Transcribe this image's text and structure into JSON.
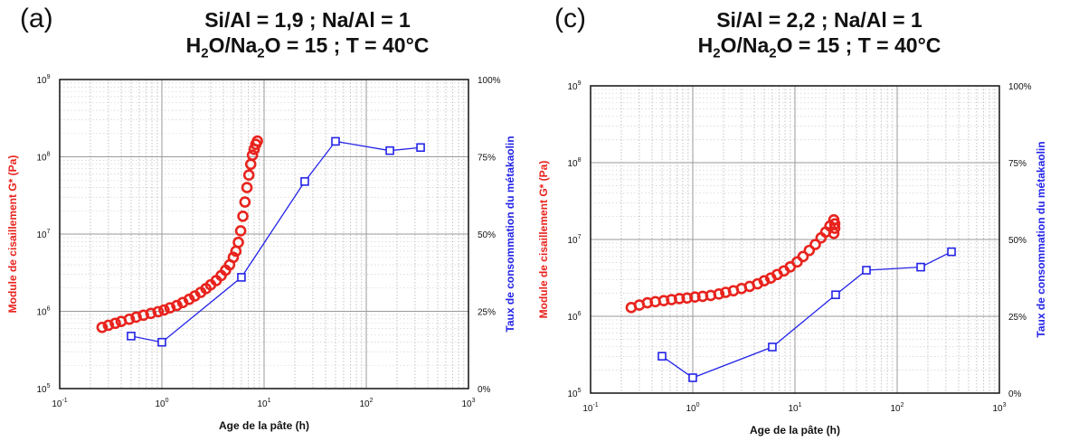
{
  "chart_data": [
    {
      "type": "scatter",
      "panel_label": "(a)",
      "title_line1": "Si/Al = 1,9 ; Na/Al = 1",
      "title_line2_prefix": "H",
      "title_line2_sub": "2",
      "title_line2_mid": "O/Na",
      "title_line2_sub2": "2",
      "title_line2_suffix": "O = 15 ; T = 40°C",
      "xlabel": "Age de la pâte (h)",
      "ylabel_left": "Module de cisaillement G* (Pa)",
      "ylabel_right": "Taux de consommation du métakaolin",
      "x_scale": "log",
      "xlim": [
        0.1,
        1000
      ],
      "x_ticks": [
        {
          "base": "10",
          "exp": "-1"
        },
        {
          "base": "10",
          "exp": "0"
        },
        {
          "base": "10",
          "exp": "1"
        },
        {
          "base": "10",
          "exp": "2"
        },
        {
          "base": "10",
          "exp": "3"
        }
      ],
      "y_left_scale": "log",
      "y_left_lim": [
        100000,
        1000000000
      ],
      "y_left_ticks": [
        {
          "base": "10",
          "exp": "5"
        },
        {
          "base": "10",
          "exp": "6"
        },
        {
          "base": "10",
          "exp": "7"
        },
        {
          "base": "10",
          "exp": "8"
        },
        {
          "base": "10",
          "exp": "9"
        }
      ],
      "y_right_lim": [
        0,
        100
      ],
      "y_right_ticks": [
        "0%",
        "25%",
        "50%",
        "75%",
        "100%"
      ],
      "grid": true,
      "series": [
        {
          "axis": "left",
          "color": "#e8231d",
          "marker": "circle",
          "x": [
            0.26,
            0.3,
            0.35,
            0.4,
            0.48,
            0.56,
            0.66,
            0.78,
            0.92,
            1.05,
            1.2,
            1.4,
            1.6,
            1.85,
            2.1,
            2.4,
            2.7,
            3.0,
            3.4,
            3.8,
            4.2,
            4.6,
            5.0,
            5.3,
            5.6,
            5.9,
            6.2,
            6.5,
            6.8,
            7.1,
            7.4,
            7.7,
            8.0,
            8.3,
            8.6
          ],
          "y": [
            620000,
            660000,
            700000,
            740000,
            790000,
            840000,
            890000,
            940000,
            990000,
            1040000,
            1110000,
            1190000,
            1300000,
            1430000,
            1580000,
            1760000,
            1970000,
            2200000,
            2500000,
            2900000,
            3400000,
            4000000,
            5000000,
            6000000,
            7800000,
            11000000,
            17000000,
            26000000,
            40000000,
            58000000,
            80000000,
            105000000,
            125000000,
            145000000,
            160000000
          ]
        },
        {
          "axis": "right",
          "color": "#2323e8",
          "marker": "square",
          "x": [
            0.5,
            1,
            6,
            25,
            50,
            170,
            340
          ],
          "y": [
            17,
            15,
            36,
            67,
            80,
            77,
            78
          ]
        }
      ]
    },
    {
      "type": "scatter",
      "panel_label": "(c)",
      "title_line1": "Si/Al = 2,2 ; Na/Al = 1",
      "title_line2_prefix": "H",
      "title_line2_sub": "2",
      "title_line2_mid": "O/Na",
      "title_line2_sub2": "2",
      "title_line2_suffix": "O = 15 ; T = 40°C",
      "xlabel": "Age de la pâte (h)",
      "ylabel_left": "Module de cisaillement G* (Pa)",
      "ylabel_right": "Taux de consommation du métakaolin",
      "x_scale": "log",
      "xlim": [
        0.1,
        1000
      ],
      "x_ticks": [
        {
          "base": "10",
          "exp": "-1"
        },
        {
          "base": "10",
          "exp": "0"
        },
        {
          "base": "10",
          "exp": "1"
        },
        {
          "base": "10",
          "exp": "2"
        },
        {
          "base": "10",
          "exp": "3"
        }
      ],
      "y_left_scale": "log",
      "y_left_lim": [
        100000,
        1000000000
      ],
      "y_left_ticks": [
        {
          "base": "10",
          "exp": "5"
        },
        {
          "base": "10",
          "exp": "6"
        },
        {
          "base": "10",
          "exp": "7"
        },
        {
          "base": "10",
          "exp": "8"
        },
        {
          "base": "10",
          "exp": "9"
        }
      ],
      "y_right_lim": [
        0,
        100
      ],
      "y_right_ticks": [
        "0%",
        "25%",
        "50%",
        "75%",
        "100%"
      ],
      "grid": true,
      "series": [
        {
          "axis": "left",
          "color": "#e8231d",
          "marker": "circle",
          "x": [
            0.25,
            0.3,
            0.36,
            0.43,
            0.52,
            0.62,
            0.74,
            0.88,
            1.05,
            1.25,
            1.5,
            1.8,
            2.1,
            2.5,
            3.0,
            3.6,
            4.3,
            5.0,
            5.8,
            6.7,
            7.8,
            9.0,
            10.5,
            12.0,
            13.8,
            15.8,
            18.0,
            20.0,
            22.0,
            24.0,
            24.5,
            24.5,
            24.0
          ],
          "y": [
            1300000,
            1400000,
            1500000,
            1550000,
            1600000,
            1650000,
            1700000,
            1730000,
            1780000,
            1820000,
            1870000,
            1950000,
            2050000,
            2150000,
            2300000,
            2450000,
            2650000,
            2900000,
            3150000,
            3500000,
            3900000,
            4400000,
            5100000,
            6000000,
            7200000,
            8600000,
            10500000,
            12500000,
            15000000,
            18000000,
            16000000,
            14000000,
            12000000
          ]
        },
        {
          "axis": "right",
          "color": "#2323e8",
          "marker": "square",
          "x": [
            0.5,
            1,
            6,
            25,
            50,
            170,
            340
          ],
          "y": [
            12,
            5,
            15,
            32,
            40,
            41,
            46
          ]
        }
      ]
    }
  ]
}
